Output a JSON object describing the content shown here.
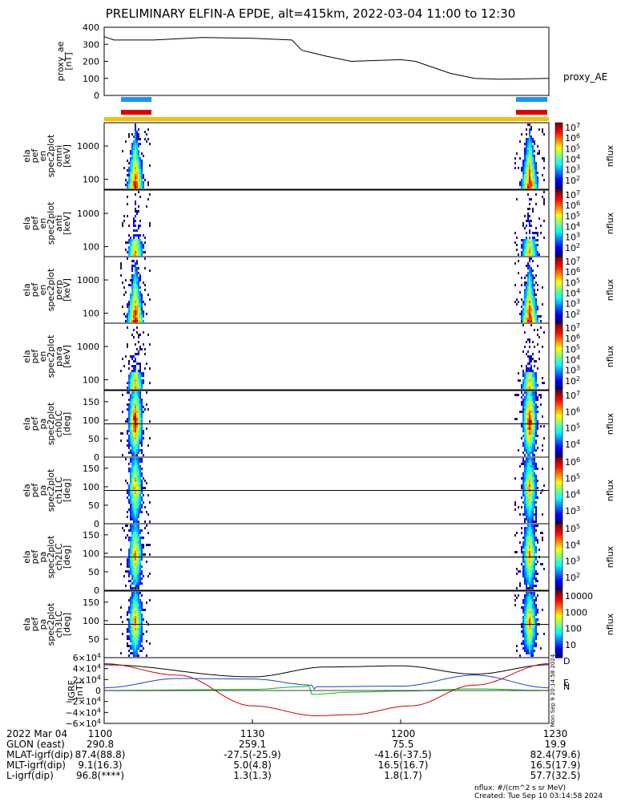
{
  "title": "PRELIMINARY ELFIN-A EPDE, alt=415km, 2022-03-04 11:00 to 12:30",
  "colors": {
    "blue_bar": "#1e90ff",
    "red_bar": "#e00000",
    "yellow_bar": "#f2c200",
    "trace_black": "#000000",
    "trace_red": "#cc0000",
    "trace_blue": "#1f3fcc",
    "trace_green": "#00c000"
  },
  "chart_data": [
    {
      "type": "line",
      "panel": "proxy_ae",
      "ylabel_lines": [
        "proxy_ae",
        "[nT]"
      ],
      "ylim": [
        0,
        400
      ],
      "yticks": [
        "400",
        "300",
        "200",
        "100",
        "0"
      ],
      "legend": "proxy_AE",
      "x": [
        "11:00",
        "11:02",
        "11:10",
        "11:20",
        "11:30",
        "11:38",
        "11:40",
        "11:45",
        "11:50",
        "12:00",
        "12:03",
        "12:10",
        "12:15",
        "12:20",
        "12:30"
      ],
      "values": [
        345,
        325,
        325,
        340,
        335,
        325,
        265,
        230,
        200,
        210,
        200,
        130,
        100,
        95,
        100
      ]
    },
    {
      "type": "heatmap",
      "panels": [
        {
          "ylabel_lines": [
            "ela",
            "pef",
            "en",
            "spec2plot",
            "omni",
            "[keV]"
          ],
          "yticks": [
            "1000",
            "100"
          ],
          "cb_ticks": [
            "10^7",
            "10^6",
            "10^5",
            "10^4",
            "10^3",
            "10^2"
          ],
          "cb_label": "nflux"
        },
        {
          "ylabel_lines": [
            "ela",
            "pef",
            "en",
            "spec2plot",
            "anti",
            "[keV]"
          ],
          "yticks": [
            "1000",
            "100"
          ],
          "cb_ticks": [
            "10^7",
            "10^6",
            "10^5",
            "10^4",
            "10^3",
            "10^2"
          ],
          "cb_label": "nflux"
        },
        {
          "ylabel_lines": [
            "ela",
            "pef",
            "en",
            "spec2plot",
            "perp",
            "[keV]"
          ],
          "yticks": [
            "1000",
            "100"
          ],
          "cb_ticks": [
            "10^7",
            "10^6",
            "10^5",
            "10^4",
            "10^3",
            "10^2"
          ],
          "cb_label": "nflux"
        },
        {
          "ylabel_lines": [
            "ela",
            "pef",
            "en",
            "spec2plot",
            "para",
            "[keV]"
          ],
          "yticks": [
            "1000",
            "100"
          ],
          "cb_ticks": [
            "10^7",
            "10^6",
            "10^5",
            "10^4",
            "10^3",
            "10^2"
          ],
          "cb_label": "nflux"
        },
        {
          "ylabel_lines": [
            "ela",
            "pef",
            "pa",
            "spec2plot",
            "ch0LC",
            "[deg]"
          ],
          "yticks": [
            "150",
            "100",
            "50",
            "0"
          ],
          "cb_ticks": [
            "10^7",
            "10^6",
            "10^5",
            "10^4"
          ],
          "cb_label": "nflux"
        },
        {
          "ylabel_lines": [
            "ela",
            "pef",
            "pa",
            "spec2plot",
            "ch1LC",
            "[deg]"
          ],
          "yticks": [
            "150",
            "100",
            "50",
            "0"
          ],
          "cb_ticks": [
            "10^6",
            "10^5",
            "10^4",
            "10^3"
          ],
          "cb_label": "nflux"
        },
        {
          "ylabel_lines": [
            "ela",
            "pef",
            "pa",
            "spec2plot",
            "ch2LC",
            "[deg]"
          ],
          "yticks": [
            "150",
            "100",
            "50",
            "0"
          ],
          "cb_ticks": [
            "10^5",
            "10^4",
            "10^3",
            "10^2"
          ],
          "cb_label": "nflux"
        },
        {
          "ylabel_lines": [
            "ela",
            "pef",
            "pa",
            "spec2plot",
            "ch3LC",
            "[deg]"
          ],
          "yticks": [
            "150",
            "100",
            "50"
          ],
          "cb_ticks": [
            "10000",
            "1000",
            "100",
            "10"
          ],
          "cb_label": "nflux"
        }
      ]
    },
    {
      "type": "line",
      "panel": "IGRF",
      "ylabel_lines": [
        "IGRF",
        "[nT]"
      ],
      "ylim": [
        -60000,
        60000
      ],
      "yticks": [
        "6×10^4",
        "4×10^4",
        "2×10^4",
        "0",
        "−2×10^4",
        "−4×10^4",
        "−6×10^4"
      ],
      "legend": [
        "D",
        "E",
        "N"
      ],
      "series": [
        {
          "x": [
            0,
            30,
            45,
            60,
            75,
            90
          ],
          "values": [
            47000,
            25000,
            43000,
            45000,
            30000,
            47000
          ]
        },
        {
          "x": [
            0,
            15,
            30,
            43,
            50,
            62,
            75,
            90
          ],
          "values": [
            49000,
            28000,
            -28000,
            -46000,
            -44000,
            -28000,
            10000,
            49000
          ]
        },
        {
          "x": [
            0,
            15,
            30,
            42,
            42.5,
            43,
            60,
            75,
            90
          ],
          "values": [
            5000,
            22000,
            21000,
            10000,
            3000,
            7000,
            8000,
            28000,
            5000
          ]
        },
        {
          "x": [
            0,
            30,
            40,
            41.5,
            42,
            50,
            60,
            75,
            90
          ],
          "values": [
            0,
            2000,
            7000,
            8000,
            -7000,
            -3000,
            -1000,
            3000,
            0
          ]
        }
      ]
    }
  ],
  "x_ticks": [
    "1100",
    "1130",
    "1200",
    "1230"
  ],
  "x_axis_label": "2022 Mar 04",
  "rows": [
    {
      "label": "GLON (east)",
      "values": [
        "290.8",
        "259.1",
        "75.5",
        "19.9"
      ]
    },
    {
      "label": "MLAT-igrf(dip)",
      "values": [
        "87.4(88.8)",
        "-27.5(-25.9)",
        "-41.6(-37.5)",
        "82.4(79.6)"
      ]
    },
    {
      "label": "MLT-igrf(dip)",
      "values": [
        "9.1(16.3)",
        "5.0(4.8)",
        "16.5(16.7)",
        "16.5(17.9)"
      ]
    },
    {
      "label": "L-igrf(dip)",
      "values": [
        "96.8(****)",
        "1.3(1.3)",
        "1.8(1.7)",
        "57.7(32.5)"
      ]
    }
  ],
  "side_stamp": "Mon Sep 9 20:14:58 2024",
  "footer_units": "nflux: #/(cm^2 s sr MeV)",
  "footer_created": "Created: Tue Sep 10 03:14:58 2024"
}
